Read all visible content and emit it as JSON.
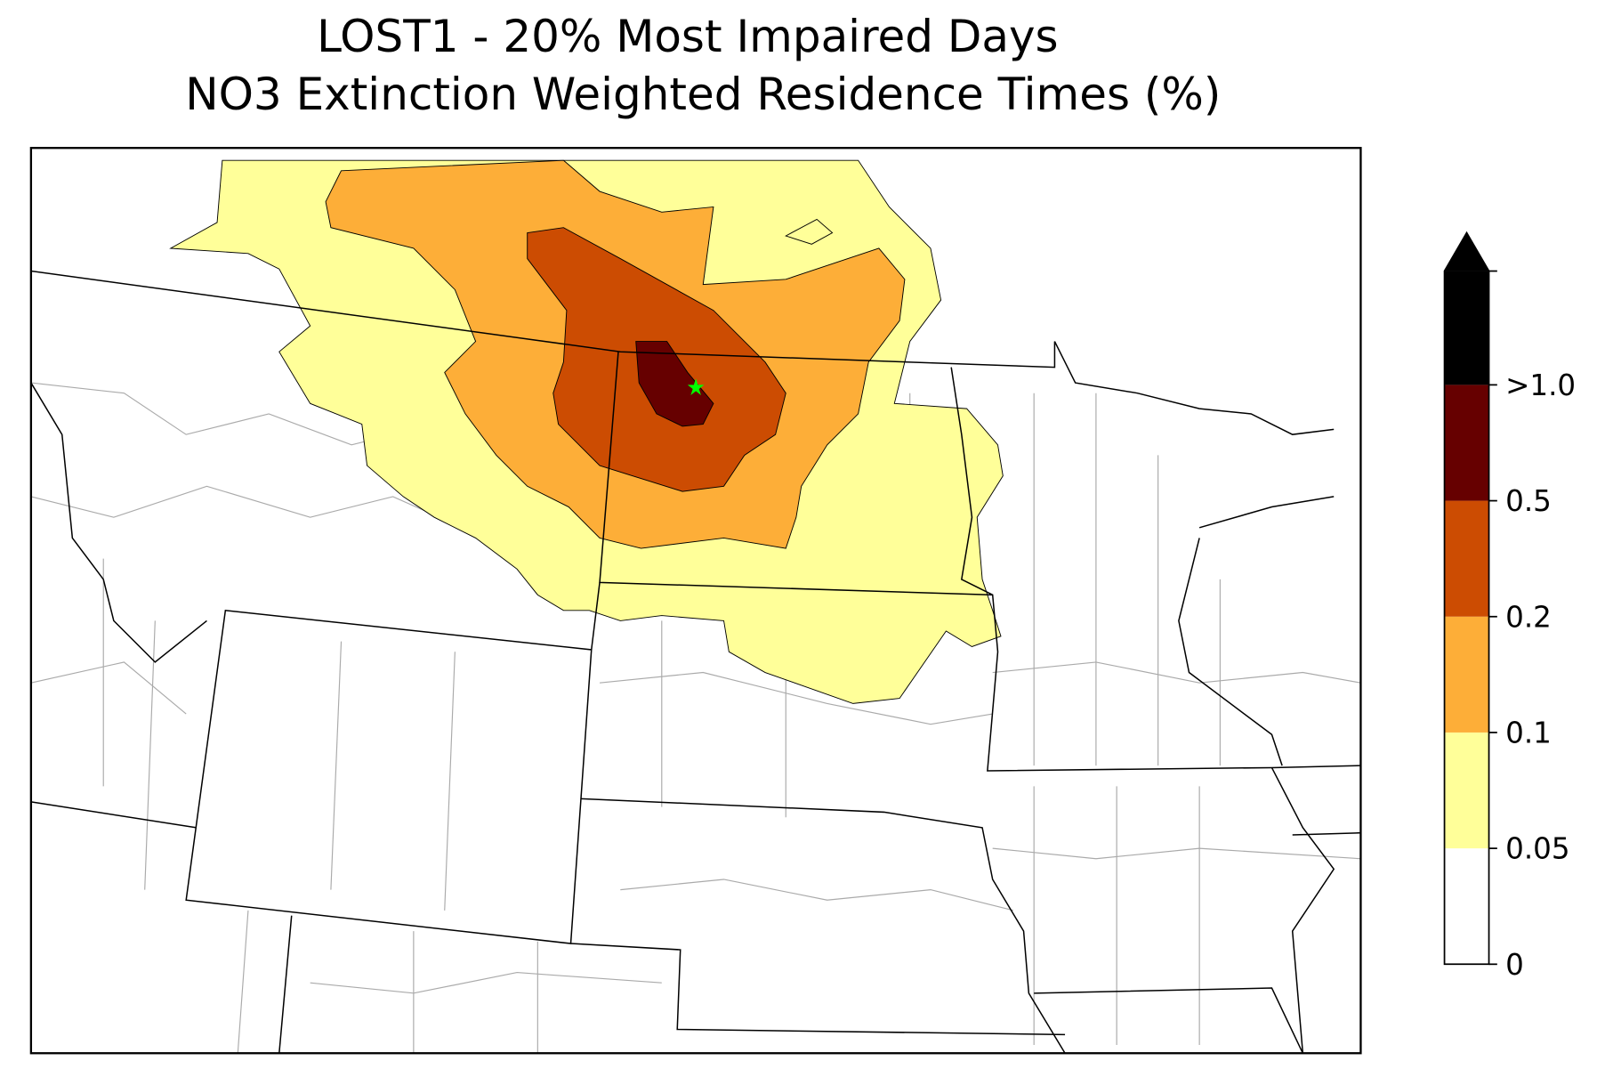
{
  "map": {
    "title": "LOST1 - 20% Most Impaired Days",
    "subtitle": "NO3 Extinction Weighted Residence Times (%)",
    "colorbar": {
      "ticks": [
        0,
        0.05,
        0.1,
        0.2,
        {
          "value": 0.5,
          "label": "0.5"
        },
        {
          "value": 1.0,
          "label": ">1.0"
        }
      ],
      "colors": [
        "#ffffff",
        "#ffff99",
        "#fdae38",
        "#cc4c02",
        "#660000",
        "#000000"
      ],
      "extend": "max"
    }
  }
}
